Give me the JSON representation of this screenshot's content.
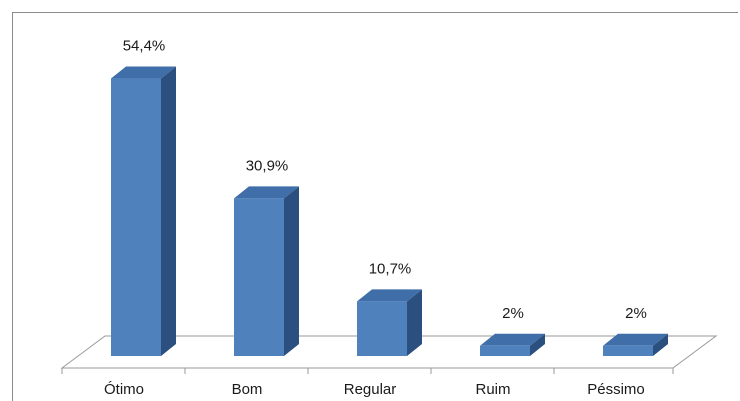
{
  "chart_data": {
    "type": "bar",
    "categories": [
      "Ótimo",
      "Bom",
      "Regular",
      "Ruim",
      "Péssimo"
    ],
    "values": [
      54.4,
      30.9,
      10.7,
      2,
      2
    ],
    "value_labels": [
      "54,4%",
      "30,9%",
      "10,7%",
      "2%",
      "2%"
    ],
    "title": "",
    "xlabel": "",
    "ylabel": "",
    "ylim": [
      0,
      60
    ],
    "grid": false,
    "legend": "none",
    "style": "3d-column"
  },
  "colors": {
    "bar_front": "#4f81bd",
    "bar_top": "#3f6ea8",
    "bar_side": "#2b4f7e",
    "floor_stroke": "#9a9a9a",
    "frame": "#8c8c8c"
  }
}
